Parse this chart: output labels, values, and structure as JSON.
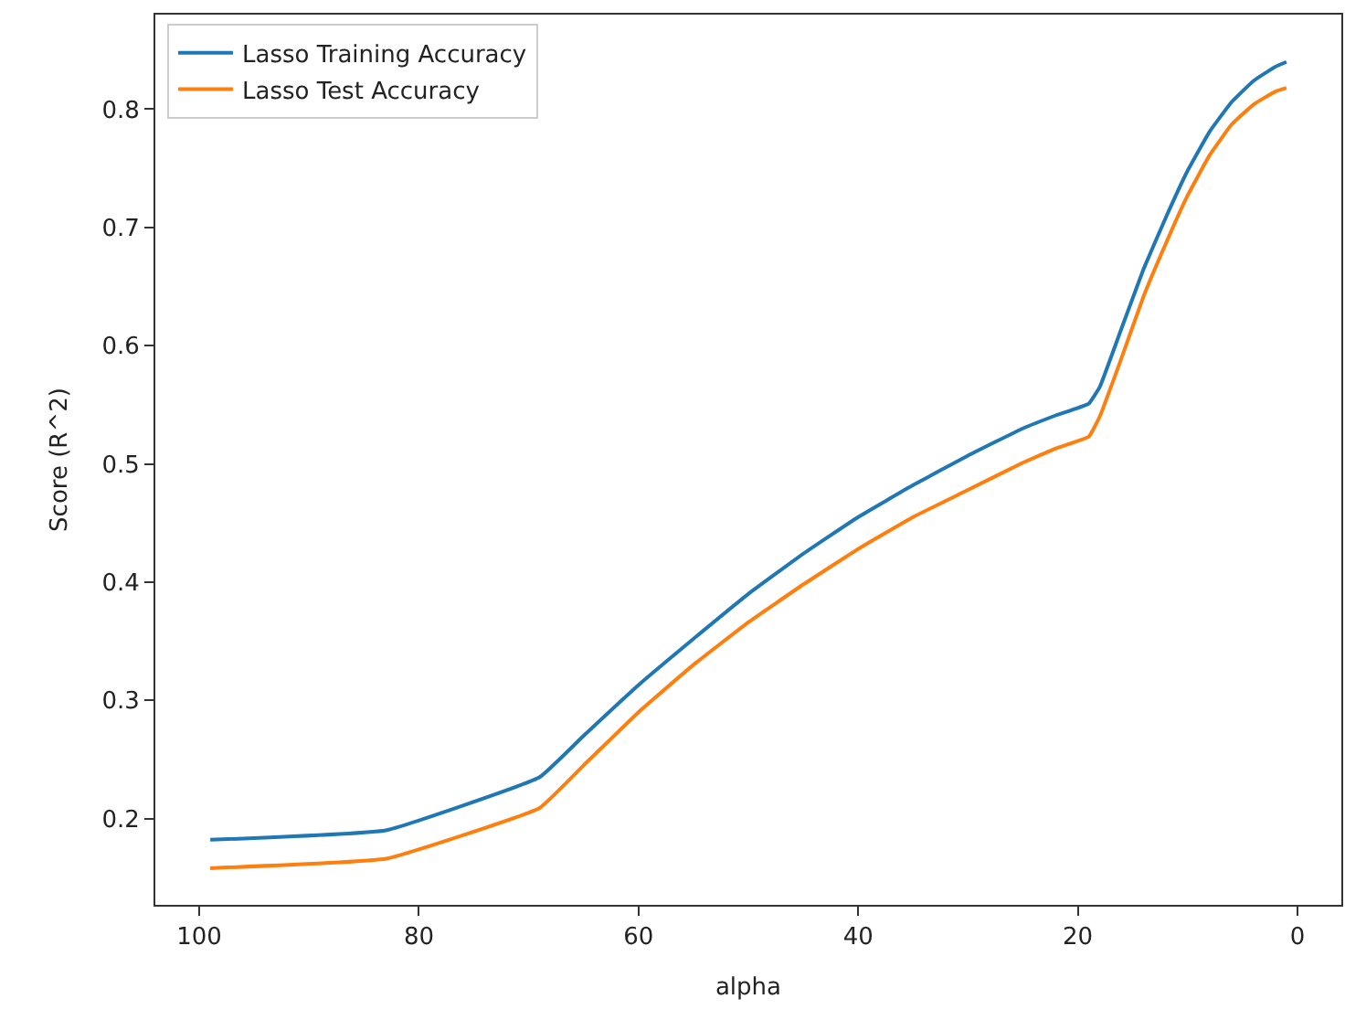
{
  "chart_data": {
    "type": "line",
    "xlabel": "alpha",
    "ylabel": "Score (R^2)",
    "xlim": [
      104,
      -4
    ],
    "xticks": [
      100,
      80,
      60,
      40,
      20,
      0
    ],
    "ylim": [
      0.127,
      0.88
    ],
    "yticks": [
      0.2,
      0.3,
      0.4,
      0.5,
      0.6,
      0.7,
      0.8
    ],
    "legend": "top left",
    "marker": "none",
    "line_style": "solid",
    "series": [
      {
        "name": "Lasso Training Accuracy",
        "color": "#1f77b4",
        "x": [
          99,
          83,
          69,
          65,
          60,
          55,
          50,
          45,
          40,
          35,
          30,
          25,
          22,
          19,
          18,
          16,
          14,
          12,
          10,
          8,
          6,
          4,
          2,
          1
        ],
        "values": [
          0.182,
          0.19,
          0.235,
          0.27,
          0.313,
          0.352,
          0.39,
          0.424,
          0.455,
          0.482,
          0.507,
          0.53,
          0.541,
          0.551,
          0.565,
          0.615,
          0.665,
          0.708,
          0.748,
          0.781,
          0.806,
          0.824,
          0.836,
          0.84
        ]
      },
      {
        "name": "Lasso Test Accuracy",
        "color": "#ff7f0e",
        "x": [
          99,
          83,
          69,
          65,
          60,
          55,
          50,
          45,
          40,
          35,
          30,
          25,
          22,
          19,
          18,
          16,
          14,
          12,
          10,
          8,
          6,
          4,
          2,
          1
        ],
        "values": [
          0.158,
          0.166,
          0.209,
          0.245,
          0.29,
          0.33,
          0.366,
          0.398,
          0.428,
          0.455,
          0.478,
          0.501,
          0.513,
          0.523,
          0.54,
          0.59,
          0.642,
          0.686,
          0.727,
          0.761,
          0.787,
          0.804,
          0.815,
          0.818
        ]
      }
    ]
  }
}
